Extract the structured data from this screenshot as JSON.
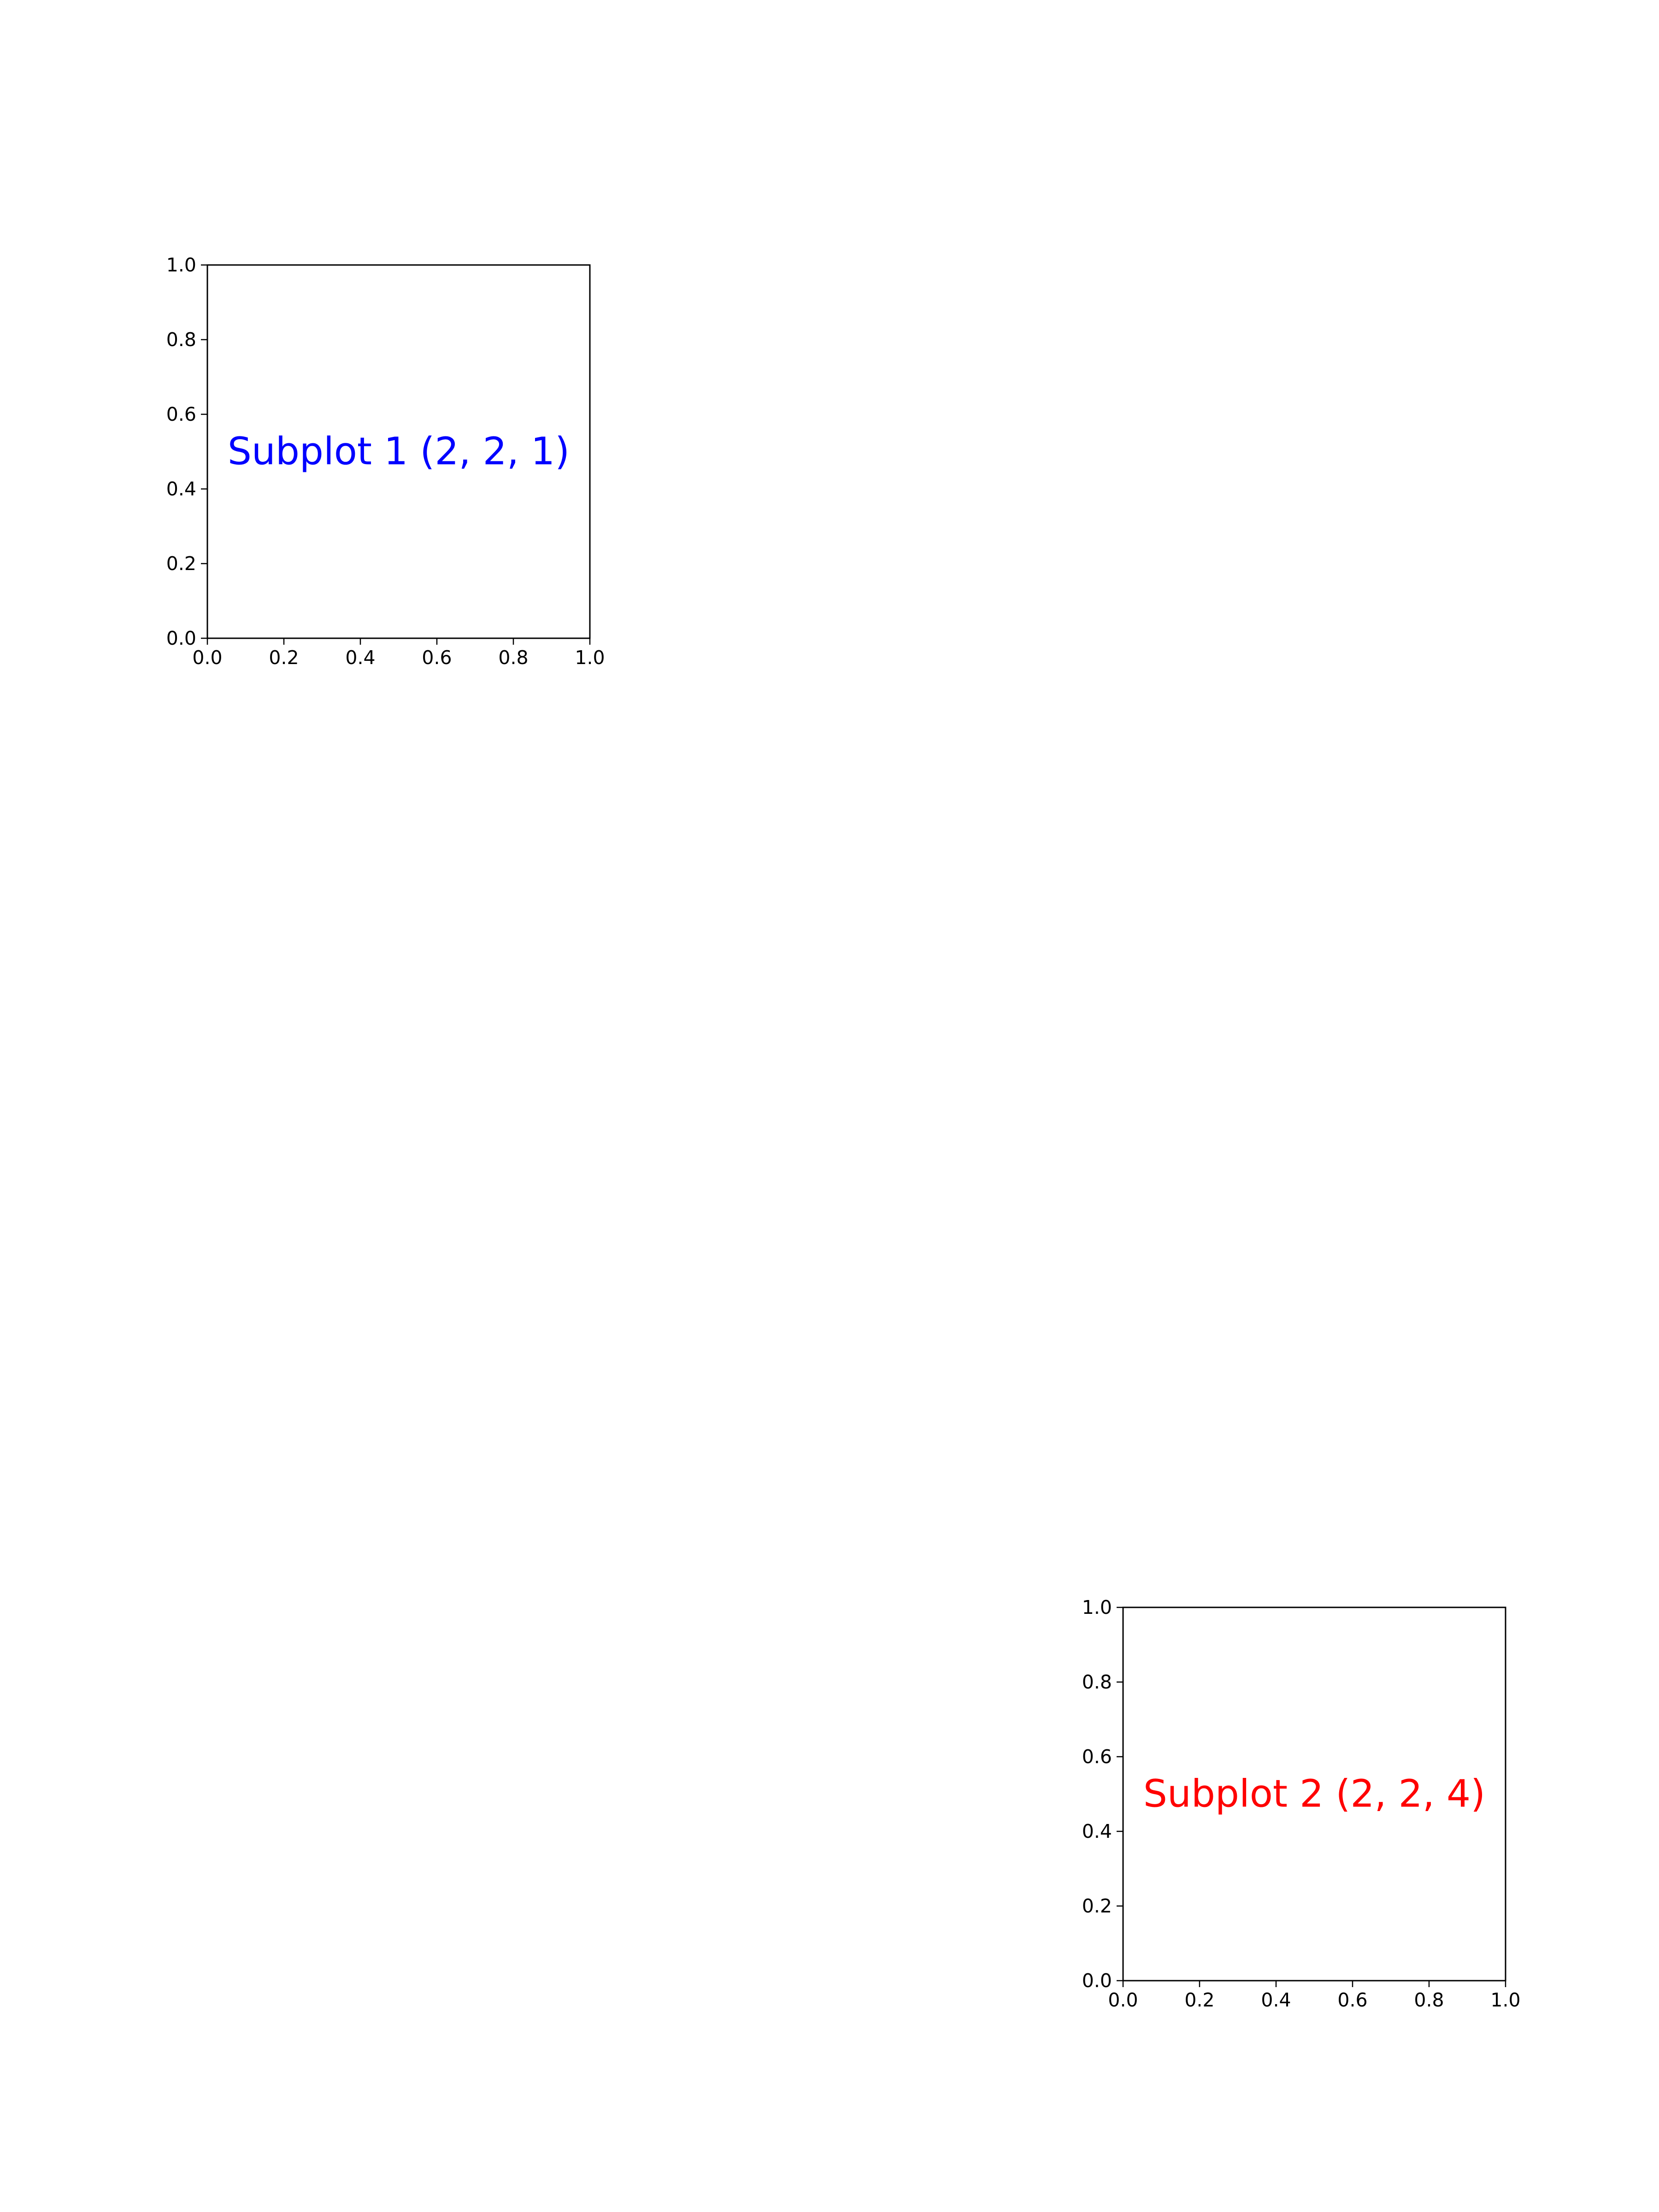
{
  "chart_data": [
    {
      "type": "text",
      "subplot": "(2, 2, 1)",
      "xlim": [
        0.0,
        1.0
      ],
      "ylim": [
        0.0,
        1.0
      ],
      "xticks": [
        0.0,
        0.2,
        0.4,
        0.6,
        0.8,
        1.0
      ],
      "yticks": [
        0.0,
        0.2,
        0.4,
        0.6,
        0.8,
        1.0
      ],
      "xtick_labels": [
        "0.0",
        "0.2",
        "0.4",
        "0.6",
        "0.8",
        "1.0"
      ],
      "ytick_labels": [
        "0.0",
        "0.2",
        "0.4",
        "0.6",
        "0.8",
        "1.0"
      ],
      "annotation": {
        "text": "Subplot 1 (2, 2, 1)",
        "x": 0.5,
        "y": 0.5,
        "color": "#0000ff"
      },
      "title": "",
      "xlabel": "",
      "ylabel": "",
      "grid": false
    },
    {
      "type": "text",
      "subplot": "(2, 2, 4)",
      "xlim": [
        0.0,
        1.0
      ],
      "ylim": [
        0.0,
        1.0
      ],
      "xticks": [
        0.0,
        0.2,
        0.4,
        0.6,
        0.8,
        1.0
      ],
      "yticks": [
        0.0,
        0.2,
        0.4,
        0.6,
        0.8,
        1.0
      ],
      "xtick_labels": [
        "0.0",
        "0.2",
        "0.4",
        "0.6",
        "0.8",
        "1.0"
      ],
      "ytick_labels": [
        "0.0",
        "0.2",
        "0.4",
        "0.6",
        "0.8",
        "1.0"
      ],
      "annotation": {
        "text": "Subplot 2 (2, 2, 4)",
        "x": 0.5,
        "y": 0.5,
        "color": "#ff0000"
      },
      "title": "",
      "xlabel": "",
      "ylabel": "",
      "grid": false
    }
  ]
}
